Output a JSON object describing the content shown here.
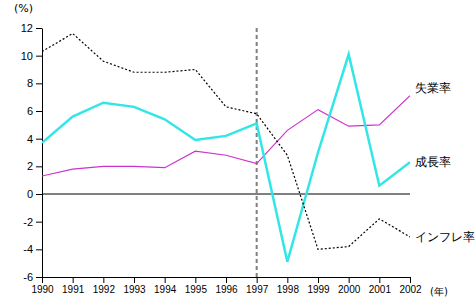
{
  "chart_data": {
    "type": "line",
    "y_label": "(%)",
    "x_label": "(年)",
    "x": [
      1990,
      1991,
      1992,
      1993,
      1994,
      1995,
      1996,
      1997,
      1998,
      1999,
      2000,
      2001,
      2002
    ],
    "xlim": [
      1990,
      2002
    ],
    "xticks": [
      1990,
      1991,
      1992,
      1993,
      1994,
      1995,
      1996,
      1997,
      1998,
      1999,
      2000,
      2001,
      2002
    ],
    "ylim": [
      -6,
      12
    ],
    "yticks": [
      -6,
      -4,
      -2,
      0,
      2,
      4,
      6,
      8,
      10,
      12
    ],
    "grid": false,
    "reference_lines": [
      {
        "x": 1997,
        "line_style": "dashed",
        "color": "#808080"
      }
    ],
    "series": [
      {
        "name": "失業率",
        "color": "#cc33cc",
        "line_style": "solid",
        "values": [
          1.3,
          1.8,
          2.0,
          2.0,
          1.9,
          3.1,
          2.8,
          2.2,
          4.6,
          6.1,
          4.9,
          5.0,
          7.1
        ]
      },
      {
        "name": "成長率",
        "color": "#33e6e6",
        "line_style": "solid",
        "values": [
          3.7,
          5.6,
          6.6,
          6.3,
          5.4,
          3.9,
          4.2,
          5.1,
          -4.9,
          3.0,
          10.1,
          0.6,
          2.3
        ]
      },
      {
        "name": "インフレ率",
        "color": "#000000",
        "line_style": "dotted",
        "values": [
          10.3,
          11.6,
          9.6,
          8.8,
          8.8,
          9.0,
          6.3,
          5.8,
          2.8,
          -4.0,
          -3.8,
          -1.8,
          -3.1
        ]
      }
    ]
  }
}
